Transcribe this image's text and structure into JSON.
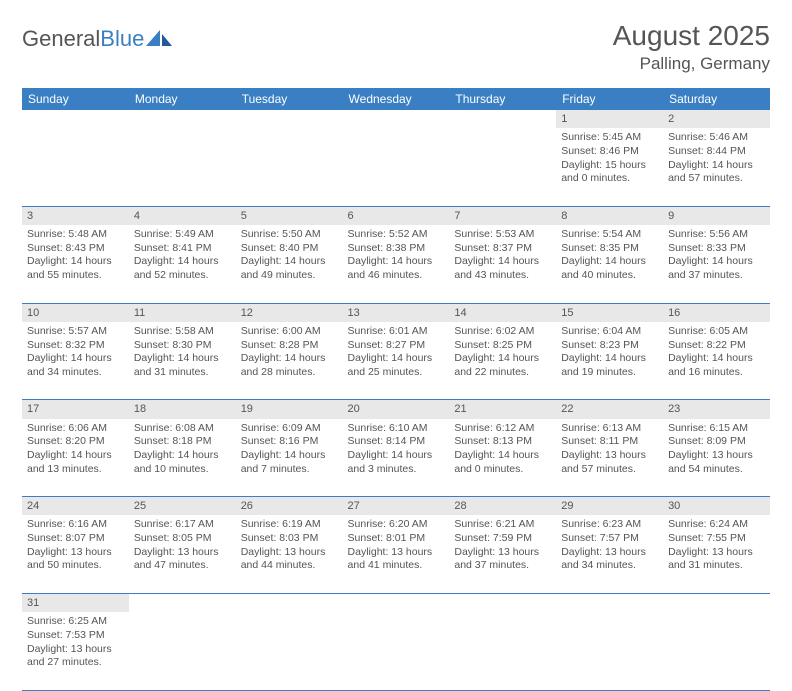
{
  "logo": {
    "part1": "General",
    "part2": "Blue"
  },
  "title": "August 2025",
  "location": "Palling, Germany",
  "header_bg": "#3a7fc4",
  "header_fg": "#ffffff",
  "daynum_bg": "#e8e8e8",
  "text_color": "#555555",
  "border_color": "#3a7fc4",
  "days_of_week": [
    "Sunday",
    "Monday",
    "Tuesday",
    "Wednesday",
    "Thursday",
    "Friday",
    "Saturday"
  ],
  "weeks": [
    [
      null,
      null,
      null,
      null,
      null,
      {
        "n": "1",
        "sr": "5:45 AM",
        "ss": "8:46 PM",
        "dl": "15 hours and 0 minutes."
      },
      {
        "n": "2",
        "sr": "5:46 AM",
        "ss": "8:44 PM",
        "dl": "14 hours and 57 minutes."
      }
    ],
    [
      {
        "n": "3",
        "sr": "5:48 AM",
        "ss": "8:43 PM",
        "dl": "14 hours and 55 minutes."
      },
      {
        "n": "4",
        "sr": "5:49 AM",
        "ss": "8:41 PM",
        "dl": "14 hours and 52 minutes."
      },
      {
        "n": "5",
        "sr": "5:50 AM",
        "ss": "8:40 PM",
        "dl": "14 hours and 49 minutes."
      },
      {
        "n": "6",
        "sr": "5:52 AM",
        "ss": "8:38 PM",
        "dl": "14 hours and 46 minutes."
      },
      {
        "n": "7",
        "sr": "5:53 AM",
        "ss": "8:37 PM",
        "dl": "14 hours and 43 minutes."
      },
      {
        "n": "8",
        "sr": "5:54 AM",
        "ss": "8:35 PM",
        "dl": "14 hours and 40 minutes."
      },
      {
        "n": "9",
        "sr": "5:56 AM",
        "ss": "8:33 PM",
        "dl": "14 hours and 37 minutes."
      }
    ],
    [
      {
        "n": "10",
        "sr": "5:57 AM",
        "ss": "8:32 PM",
        "dl": "14 hours and 34 minutes."
      },
      {
        "n": "11",
        "sr": "5:58 AM",
        "ss": "8:30 PM",
        "dl": "14 hours and 31 minutes."
      },
      {
        "n": "12",
        "sr": "6:00 AM",
        "ss": "8:28 PM",
        "dl": "14 hours and 28 minutes."
      },
      {
        "n": "13",
        "sr": "6:01 AM",
        "ss": "8:27 PM",
        "dl": "14 hours and 25 minutes."
      },
      {
        "n": "14",
        "sr": "6:02 AM",
        "ss": "8:25 PM",
        "dl": "14 hours and 22 minutes."
      },
      {
        "n": "15",
        "sr": "6:04 AM",
        "ss": "8:23 PM",
        "dl": "14 hours and 19 minutes."
      },
      {
        "n": "16",
        "sr": "6:05 AM",
        "ss": "8:22 PM",
        "dl": "14 hours and 16 minutes."
      }
    ],
    [
      {
        "n": "17",
        "sr": "6:06 AM",
        "ss": "8:20 PM",
        "dl": "14 hours and 13 minutes."
      },
      {
        "n": "18",
        "sr": "6:08 AM",
        "ss": "8:18 PM",
        "dl": "14 hours and 10 minutes."
      },
      {
        "n": "19",
        "sr": "6:09 AM",
        "ss": "8:16 PM",
        "dl": "14 hours and 7 minutes."
      },
      {
        "n": "20",
        "sr": "6:10 AM",
        "ss": "8:14 PM",
        "dl": "14 hours and 3 minutes."
      },
      {
        "n": "21",
        "sr": "6:12 AM",
        "ss": "8:13 PM",
        "dl": "14 hours and 0 minutes."
      },
      {
        "n": "22",
        "sr": "6:13 AM",
        "ss": "8:11 PM",
        "dl": "13 hours and 57 minutes."
      },
      {
        "n": "23",
        "sr": "6:15 AM",
        "ss": "8:09 PM",
        "dl": "13 hours and 54 minutes."
      }
    ],
    [
      {
        "n": "24",
        "sr": "6:16 AM",
        "ss": "8:07 PM",
        "dl": "13 hours and 50 minutes."
      },
      {
        "n": "25",
        "sr": "6:17 AM",
        "ss": "8:05 PM",
        "dl": "13 hours and 47 minutes."
      },
      {
        "n": "26",
        "sr": "6:19 AM",
        "ss": "8:03 PM",
        "dl": "13 hours and 44 minutes."
      },
      {
        "n": "27",
        "sr": "6:20 AM",
        "ss": "8:01 PM",
        "dl": "13 hours and 41 minutes."
      },
      {
        "n": "28",
        "sr": "6:21 AM",
        "ss": "7:59 PM",
        "dl": "13 hours and 37 minutes."
      },
      {
        "n": "29",
        "sr": "6:23 AM",
        "ss": "7:57 PM",
        "dl": "13 hours and 34 minutes."
      },
      {
        "n": "30",
        "sr": "6:24 AM",
        "ss": "7:55 PM",
        "dl": "13 hours and 31 minutes."
      }
    ],
    [
      {
        "n": "31",
        "sr": "6:25 AM",
        "ss": "7:53 PM",
        "dl": "13 hours and 27 minutes."
      },
      null,
      null,
      null,
      null,
      null,
      null
    ]
  ],
  "labels": {
    "sunrise": "Sunrise:",
    "sunset": "Sunset:",
    "daylight": "Daylight:"
  }
}
